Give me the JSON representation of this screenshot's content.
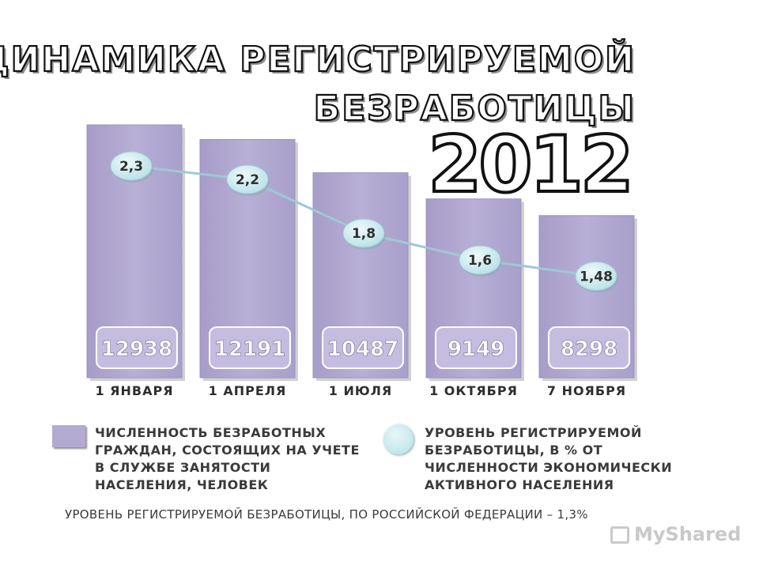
{
  "title_line1": "ДИНАМИКА РЕГИСТРИРУЕМОЙ",
  "title_line2": "БЕЗРАБОТИЦЫ",
  "year": "2012",
  "chart_data": {
    "type": "bar",
    "categories": [
      "1 ЯНВАРЯ",
      "1 АПРЕЛЯ",
      "1 ИЮЛЯ",
      "1 ОКТЯБРЯ",
      "7 НОЯБРЯ"
    ],
    "series": [
      {
        "type": "bar",
        "values": [
          12938,
          12191,
          10487,
          9149,
          8298
        ],
        "labels": [
          "12938",
          "12191",
          "10487",
          "9149",
          "8298"
        ]
      },
      {
        "type": "line",
        "values": [
          2.3,
          2.2,
          1.8,
          1.6,
          1.48
        ],
        "labels": [
          "2,3",
          "2,2",
          "1,8",
          "1,6",
          "1,48"
        ]
      }
    ],
    "legend": [
      "ЧИСЛЕННОСТЬ БЕЗРАБОТНЫХ ГРАЖДАН, СОСТОЯЩИХ НА УЧЕТЕ В СЛУЖБЕ ЗАНЯТОСТИ НАСЕЛЕНИЯ, ЧЕЛОВЕК",
      "УРОВЕНЬ РЕГИСТРИРУЕМОЙ БЕЗРАБОТИЦЫ, В % ОТ ЧИСЛЕННОСТИ ЭКОНОМИЧЕСКИ АКТИВНОГО НАСЕЛЕНИЯ"
    ],
    "legend_placement": "bottom",
    "grid": false,
    "colors": {
      "bar": "#b3aad2",
      "bar_label_box": "#c5bde0",
      "dot": "#c3e6ea",
      "line": "#9fc8d6"
    }
  },
  "footnote": "УРОВЕНЬ РЕГИСТРИРУЕМОЙ БЕЗРАБОТИЦЫ, ПО РОССИЙСКОЙ ФЕДЕРАЦИИ – 1,3%",
  "watermark": "MyShared",
  "watermark_icon": "myshared-logo-icon"
}
